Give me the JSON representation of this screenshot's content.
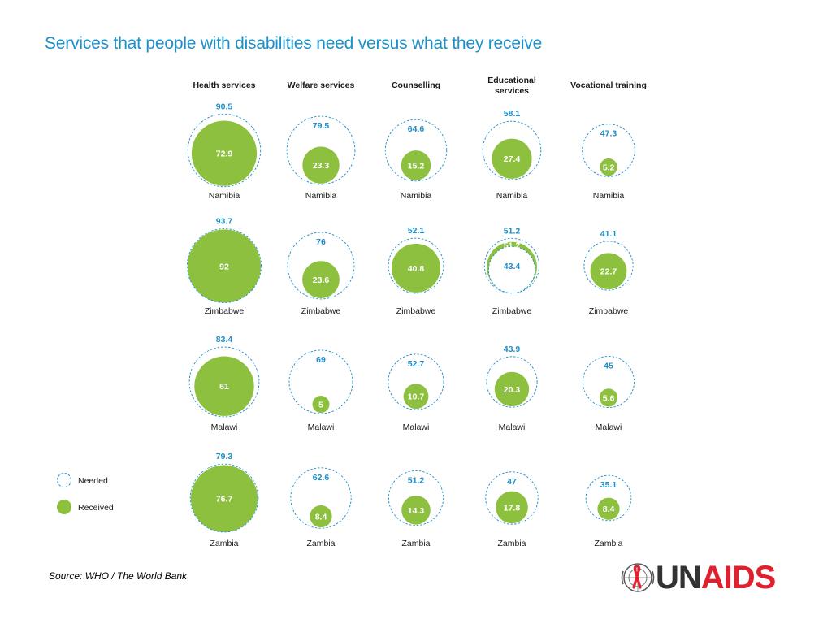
{
  "title": "Services that people with disabilities need versus what they receive",
  "source": "Source: WHO / The World Bank",
  "logo": {
    "word_a": "UN",
    "word_b": "AIDS",
    "emblem": "un-emblem-red-ribbon-icon"
  },
  "colors": {
    "needed": "#1d8fc9",
    "received": "#8dc03f",
    "text": "#1a1a1a",
    "brand_red": "#e0202e"
  },
  "legend": {
    "needed": "Needed",
    "received": "Received"
  },
  "chart_data": {
    "type": "bubble-grid",
    "services": [
      {
        "lines": [
          "Health services"
        ]
      },
      {
        "lines": [
          "Welfare services"
        ]
      },
      {
        "lines": [
          "Counselling"
        ]
      },
      {
        "lines": [
          "Educational",
          "services"
        ]
      },
      {
        "lines": [
          "Vocational training"
        ]
      }
    ],
    "countries": [
      {
        "name": "Namibia",
        "needed": [
          90.5,
          79.5,
          64.6,
          58.1,
          47.3
        ],
        "received": [
          72.9,
          23.3,
          15.2,
          27.4,
          5.2
        ]
      },
      {
        "name": "Zimbabwe",
        "needed": [
          93.7,
          76,
          52.1,
          51.2,
          41.1
        ],
        "received": [
          92,
          23.6,
          40.8,
          43.4,
          22.7
        ]
      },
      {
        "name": "Malawi",
        "needed": [
          83.4,
          69,
          52.7,
          43.9,
          45
        ],
        "received": [
          61,
          5,
          10.7,
          20.3,
          5.6
        ]
      },
      {
        "name": "Zambia",
        "needed": [
          79.3,
          62.6,
          51.2,
          47,
          35.1
        ],
        "received": [
          76.7,
          8.4,
          14.3,
          17.8,
          8.4
        ]
      }
    ],
    "needed_labels": [
      [
        "90.5",
        "79.5",
        "64.6",
        "58.1",
        "47.3"
      ],
      [
        "93.7",
        "76",
        "52.1",
        "51.2",
        "41.1"
      ],
      [
        "83.4",
        "69",
        "52.7",
        "43.9",
        "45"
      ],
      [
        "79.3",
        "62.6",
        "51.2",
        "47",
        "35.1"
      ]
    ],
    "received_labels": [
      [
        "72.9",
        "23.3",
        "15.2",
        "27.4",
        "5.2"
      ],
      [
        "92",
        "23.6",
        "40.8",
        "43.4",
        "22.7"
      ],
      [
        "61",
        "5",
        "10.7",
        "20.3",
        "5.6"
      ],
      [
        "76.7",
        "8.4",
        "14.3",
        "17.8",
        "8.4"
      ]
    ]
  }
}
